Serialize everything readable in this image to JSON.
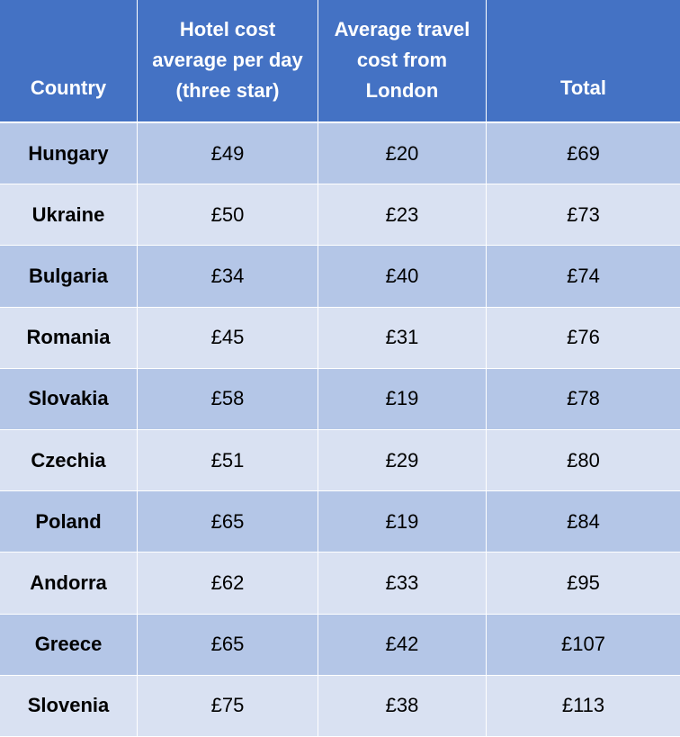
{
  "chart_data": {
    "type": "table",
    "columns": [
      "Country",
      "Hotel cost average per day (three star)",
      "Average travel cost from London",
      "Total"
    ],
    "header_lines": [
      [
        "Country"
      ],
      [
        "Hotel cost",
        "average per day",
        "(three star)"
      ],
      [
        "Average travel",
        "cost from",
        "London"
      ],
      [
        "Total"
      ]
    ],
    "rows": [
      [
        "Hungary",
        "£49",
        "£20",
        "£69"
      ],
      [
        "Ukraine",
        "£50",
        "£23",
        "£73"
      ],
      [
        "Bulgaria",
        "£34",
        "£40",
        "£74"
      ],
      [
        "Romania",
        "£45",
        "£31",
        "£76"
      ],
      [
        "Slovakia",
        "£58",
        "£19",
        "£78"
      ],
      [
        "Czechia",
        "£51",
        "£29",
        "£80"
      ],
      [
        "Poland",
        "£65",
        "£19",
        "£84"
      ],
      [
        "Andorra",
        "£62",
        "£33",
        "£95"
      ],
      [
        "Greece",
        "£65",
        "£42",
        "£107"
      ],
      [
        "Slovenia",
        "£75",
        "£38",
        "£113"
      ]
    ],
    "colors": {
      "header": "#4472c4",
      "row_dark": "#b4c6e7",
      "row_light": "#d9e1f2"
    }
  }
}
